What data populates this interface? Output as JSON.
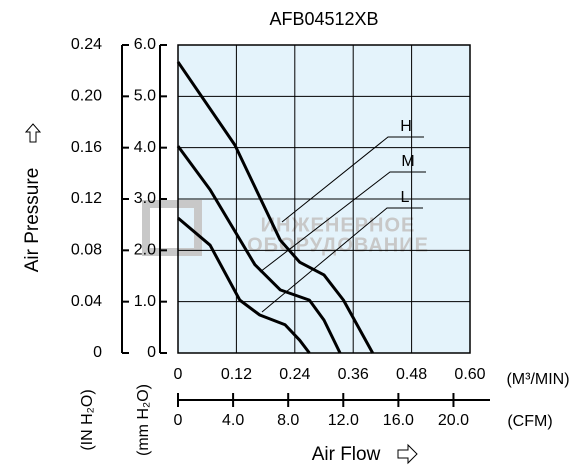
{
  "chart_data": {
    "type": "line",
    "title": "AFB04512XB",
    "y_label": "Air Pressure",
    "x_label": "Air Flow",
    "y_unit_label": "(mm H₂O)",
    "y2_unit_label": "(IN H₂O)",
    "x_unit_label": "(M³/MIN)",
    "x2_unit_label": "(CFM)",
    "watermark": [
      "ИНЖЕНЕРНОЕ",
      "ОБОРУДОВАНИЕ"
    ],
    "xlim": [
      0,
      0.6
    ],
    "xticks": [
      0,
      0.12,
      0.24,
      0.36,
      0.48,
      {
        "value": 0.6,
        "label": "0.60"
      }
    ],
    "x2lim": [
      0,
      21.2
    ],
    "x2ticks": [
      0,
      {
        "value": 4,
        "label": "4.0"
      },
      {
        "value": 8,
        "label": "8.0"
      },
      {
        "value": 12,
        "label": "12.0"
      },
      {
        "value": 16,
        "label": "16.0"
      },
      {
        "value": 20,
        "label": "20.0"
      }
    ],
    "ylim": [
      0,
      6
    ],
    "yticks": [
      0,
      {
        "value": 1,
        "label": "1.0"
      },
      {
        "value": 2,
        "label": "2.0"
      },
      {
        "value": 3,
        "label": "3.0"
      },
      {
        "value": 4,
        "label": "4.0"
      },
      {
        "value": 5,
        "label": "5.0"
      },
      {
        "value": 6,
        "label": "6.0"
      }
    ],
    "y2lim": [
      0,
      0.24
    ],
    "y2ticks": [
      0,
      0.04,
      0.08,
      0.12,
      0.16,
      {
        "value": 0.2,
        "label": "0.20"
      },
      0.24
    ],
    "grid": true,
    "series": [
      {
        "name": "H",
        "color": "#000000",
        "x": [
          0,
          0.117,
          0.21,
          0.25,
          0.3,
          0.34,
          0.4
        ],
        "values": [
          5.67,
          4.05,
          2.2,
          1.77,
          1.52,
          1.03,
          0
        ]
      },
      {
        "name": "M",
        "color": "#000000",
        "x": [
          0,
          0.066,
          0.158,
          0.21,
          0.27,
          0.3,
          0.333
        ],
        "values": [
          4.03,
          3.18,
          1.72,
          1.23,
          1.03,
          0.64,
          0
        ]
      },
      {
        "name": "L",
        "color": "#000000",
        "x": [
          0,
          0.066,
          0.127,
          0.168,
          0.22,
          0.25,
          0.27
        ],
        "values": [
          2.63,
          2.1,
          1.03,
          0.74,
          0.55,
          0.25,
          0
        ]
      }
    ]
  }
}
